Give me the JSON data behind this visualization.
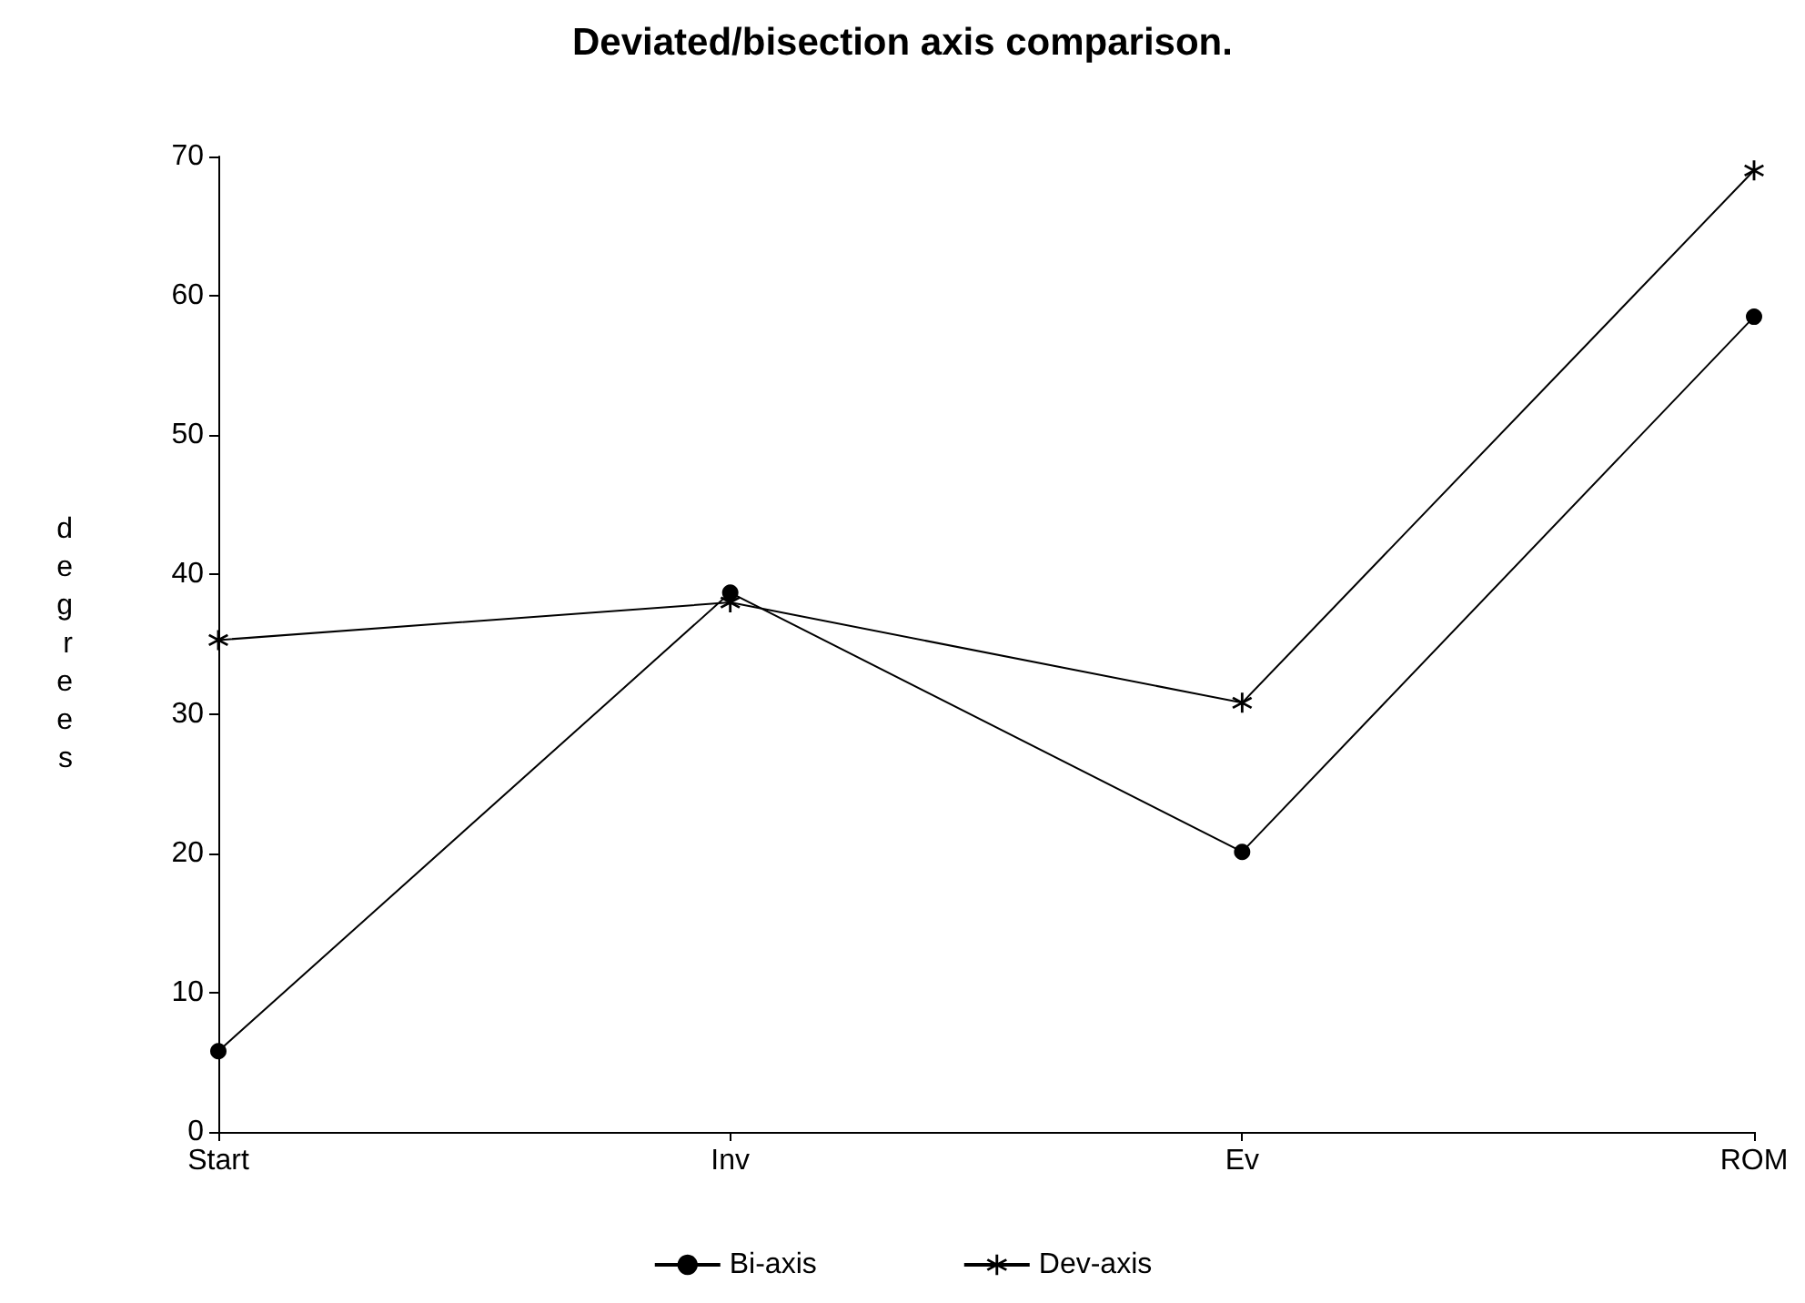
{
  "chart_data": {
    "type": "line",
    "title": "Deviated/bisection axis comparison.",
    "ylabel": "degrees",
    "categories": [
      "Start",
      "Inv",
      "Ev",
      "ROM"
    ],
    "series": [
      {
        "name": "Bi-axis",
        "color": "#000000",
        "marker": "circle",
        "values": [
          5.8,
          38.7,
          20.1,
          58.5
        ]
      },
      {
        "name": "Dev-axis",
        "color": "#000000",
        "marker": "cross",
        "values": [
          35.3,
          38,
          30.8,
          69
        ]
      }
    ],
    "ylim": [
      0,
      70
    ],
    "yticks": [
      0,
      10,
      20,
      30,
      40,
      50,
      60,
      70
    ],
    "grid": false,
    "legend": "bottom",
    "line_style": "solid"
  }
}
